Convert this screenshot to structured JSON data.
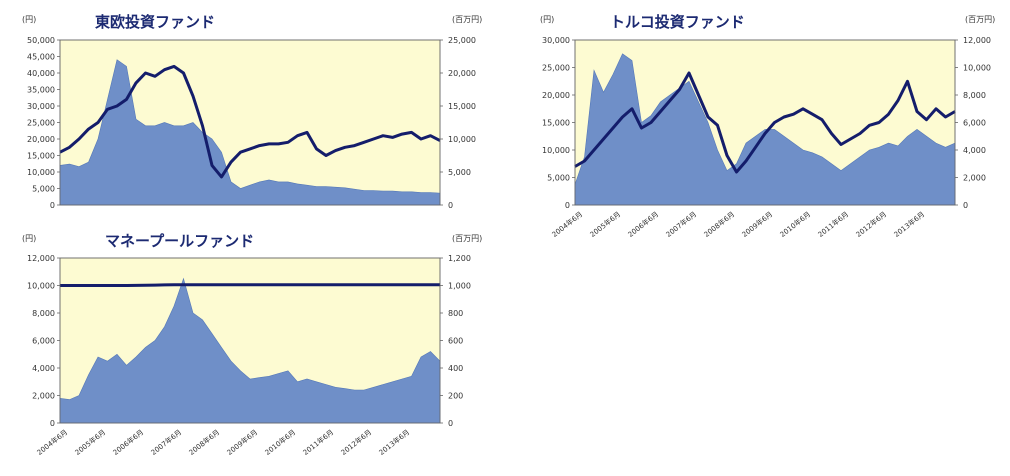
{
  "colors": {
    "background": "#fdfbd2",
    "area": "#6f8fc8",
    "area_stroke": "#5578b8",
    "line": "#141d6b",
    "title": "#1c2a72"
  },
  "charts": [
    {
      "key": "east_europe",
      "title": "東欧投資ファンド",
      "left_unit": "(円)",
      "right_unit": "(百万円)"
    },
    {
      "key": "turkey",
      "title": "トルコ投資ファンド",
      "left_unit": "(円)",
      "right_unit": "(百万円)"
    },
    {
      "key": "money_pool",
      "title": "マネープールファンド",
      "left_unit": "(円)",
      "right_unit": "(百万円)"
    }
  ],
  "chart_data": [
    {
      "type": "area",
      "title": "東欧投資ファンド",
      "x_start": "2004-06",
      "x_end": "2014-06",
      "x_step_months": 3,
      "ylim_left": [
        0,
        50000
      ],
      "ylim_right": [
        0,
        25000
      ],
      "yticks_left": [
        "50,000",
        "45,000",
        "40,000",
        "35,000",
        "30,000",
        "25,000",
        "20,000",
        "15,000",
        "10,000",
        "5,000",
        "0"
      ],
      "yticks_right": [
        "25,000",
        "20,000",
        "15,000",
        "10,000",
        "5,000",
        "0"
      ],
      "xticks": [],
      "series": [
        {
          "kind": "area",
          "axis": "right",
          "values": [
            6000,
            6200,
            5800,
            6500,
            10000,
            16000,
            22000,
            21000,
            13000,
            12000,
            12000,
            12500,
            12000,
            12000,
            12500,
            11000,
            10000,
            8000,
            3500,
            2500,
            3000,
            3500,
            3800,
            3500,
            3500,
            3200,
            3000,
            2800,
            2800,
            2700,
            2600,
            2400,
            2200,
            2200,
            2100,
            2100,
            2000,
            2000,
            1900,
            1900,
            1800
          ]
        },
        {
          "kind": "line",
          "axis": "left",
          "values": [
            16000,
            17500,
            20000,
            23000,
            25000,
            29000,
            30000,
            32000,
            37000,
            40000,
            39000,
            41000,
            42000,
            40000,
            33000,
            24000,
            12000,
            8500,
            13000,
            16000,
            17000,
            18000,
            18500,
            18500,
            19000,
            21000,
            22000,
            17000,
            15000,
            16500,
            17500,
            18000,
            19000,
            20000,
            21000,
            20500,
            21500,
            22000,
            20000,
            21000,
            19500
          ]
        }
      ]
    },
    {
      "type": "area",
      "title": "トルコ投資ファンド",
      "x_start": "2004-06",
      "x_end": "2014-06",
      "x_step_months": 3,
      "ylim_left": [
        0,
        30000
      ],
      "ylim_right": [
        0,
        12000
      ],
      "yticks_left": [
        "30,000",
        "25,000",
        "20,000",
        "15,000",
        "10,000",
        "5,000",
        "0"
      ],
      "yticks_right": [
        "12,000",
        "10,000",
        "8,000",
        "6,000",
        "4,000",
        "2,000",
        "0"
      ],
      "xticks": [
        "2004年6月",
        "2005年6月",
        "2006年6月",
        "2007年6月",
        "2008年6月",
        "2009年6月",
        "2010年6月",
        "2011年6月",
        "2012年6月",
        "2013年6月"
      ],
      "series": [
        {
          "kind": "area",
          "axis": "right",
          "values": [
            1500,
            3500,
            9800,
            8200,
            9500,
            11000,
            10500,
            6000,
            6500,
            7500,
            8000,
            8500,
            9000,
            7500,
            6000,
            4000,
            2500,
            3000,
            4500,
            5000,
            5500,
            5500,
            5000,
            4500,
            4000,
            3800,
            3500,
            3000,
            2500,
            3000,
            3500,
            4000,
            4200,
            4500,
            4300,
            5000,
            5500,
            5000,
            4500,
            4200,
            4500
          ]
        },
        {
          "kind": "line",
          "axis": "left",
          "values": [
            7000,
            8000,
            10000,
            12000,
            14000,
            16000,
            17500,
            14000,
            15000,
            17000,
            19000,
            21000,
            24000,
            20000,
            16000,
            14500,
            9000,
            6000,
            8000,
            10500,
            13000,
            15000,
            16000,
            16500,
            17500,
            16500,
            15500,
            13000,
            11000,
            12000,
            13000,
            14500,
            15000,
            16500,
            19000,
            22500,
            17000,
            15500,
            17500,
            16000,
            17000
          ]
        }
      ]
    },
    {
      "type": "area",
      "title": "マネープールファンド",
      "x_start": "2004-06",
      "x_end": "2014-06",
      "x_step_months": 3,
      "ylim_left": [
        0,
        12000
      ],
      "ylim_right": [
        0,
        1200
      ],
      "yticks_left": [
        "12,000",
        "10,000",
        "8,000",
        "6,000",
        "4,000",
        "2,000",
        "0"
      ],
      "yticks_right": [
        "1,200",
        "1,000",
        "800",
        "600",
        "400",
        "200",
        "0"
      ],
      "xticks": [
        "2004年6月",
        "2005年6月",
        "2006年6月",
        "2007年6月",
        "2008年6月",
        "2009年6月",
        "2010年6月",
        "2011年6月",
        "2012年6月",
        "2013年6月"
      ],
      "series": [
        {
          "kind": "area",
          "axis": "right",
          "values": [
            180,
            170,
            200,
            350,
            480,
            450,
            500,
            420,
            480,
            550,
            600,
            700,
            850,
            1050,
            800,
            750,
            650,
            550,
            450,
            380,
            320,
            330,
            340,
            360,
            380,
            300,
            320,
            300,
            280,
            260,
            250,
            240,
            240,
            260,
            280,
            300,
            320,
            340,
            480,
            520,
            450
          ]
        },
        {
          "kind": "line",
          "axis": "left",
          "values": [
            10000,
            10000,
            10000,
            10000,
            10000,
            10000,
            10000,
            10000,
            10010,
            10020,
            10030,
            10040,
            10050,
            10060,
            10060,
            10060,
            10060,
            10060,
            10060,
            10060,
            10060,
            10060,
            10060,
            10060,
            10060,
            10060,
            10060,
            10060,
            10060,
            10060,
            10060,
            10060,
            10060,
            10060,
            10060,
            10060,
            10060,
            10060,
            10060,
            10060,
            10060
          ]
        }
      ]
    }
  ]
}
